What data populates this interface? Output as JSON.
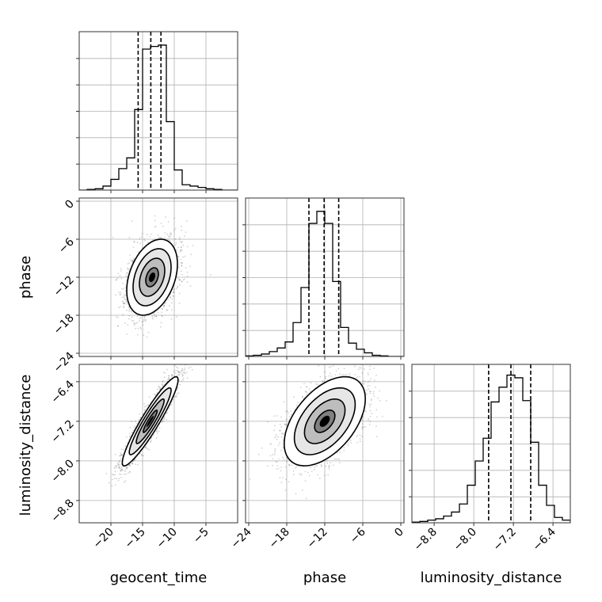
{
  "chart_data": {
    "type": "corner",
    "parameters": [
      "geocent_time",
      "phase",
      "luminosity_distance"
    ],
    "axis_labels": {
      "geocent_time": "geocent_time",
      "phase": "phase",
      "luminosity_distance": "luminosity_distance"
    },
    "ranges": {
      "geocent_time": [
        -25,
        0
      ],
      "phase": [
        -24.5,
        0.5
      ],
      "luminosity_distance": [
        -9.25,
        -6.05
      ]
    },
    "ticks": {
      "geocent_time": [
        {
          "v": -20,
          "t": "−20"
        },
        {
          "v": -15,
          "t": "−15"
        },
        {
          "v": -10,
          "t": "−10"
        },
        {
          "v": -5,
          "t": "−5"
        }
      ],
      "phase": [
        {
          "v": -24,
          "t": "−24"
        },
        {
          "v": -18,
          "t": "−18"
        },
        {
          "v": -12,
          "t": "−12"
        },
        {
          "v": -6,
          "t": "−6"
        },
        {
          "v": 0,
          "t": "0"
        }
      ],
      "luminosity_distance": [
        {
          "v": -8.8,
          "t": "−8.8"
        },
        {
          "v": -8.0,
          "t": "−8.0"
        },
        {
          "v": -7.2,
          "t": "−7.2"
        },
        {
          "v": -6.4,
          "t": "−6.4"
        }
      ]
    },
    "quantiles": {
      "geocent_time": [
        -15.7,
        -13.7,
        -12.1
      ],
      "phase": [
        -14.5,
        -12.1,
        -9.8
      ],
      "luminosity_distance": [
        -7.7,
        -7.25,
        -6.85
      ]
    },
    "histograms": {
      "geocent_time": {
        "edges": [
          -25,
          -23.75,
          -22.5,
          -21.25,
          -20,
          -18.75,
          -17.5,
          -16.25,
          -15,
          -13.75,
          -12.5,
          -11.25,
          -10,
          -8.75,
          -7.5,
          -6.25,
          -5,
          -3.75,
          -2.5,
          -1.25,
          0
        ],
        "counts": [
          0,
          0.5,
          1,
          3,
          8,
          16,
          24,
          60,
          105,
          107,
          108,
          51,
          15,
          4,
          3,
          2,
          1,
          0.5,
          0,
          0
        ],
        "ymax": 118
      },
      "phase": {
        "edges": [
          -24.5,
          -23.25,
          -22,
          -20.75,
          -19.5,
          -18.25,
          -17,
          -15.75,
          -14.5,
          -13.25,
          -12,
          -10.75,
          -9.5,
          -8.25,
          -7,
          -5.75,
          -4.5,
          -3.25,
          -2,
          -0.75,
          0.5
        ],
        "counts": [
          0.5,
          1,
          2,
          4,
          7,
          12,
          28,
          57,
          110,
          120,
          110,
          62,
          24,
          11,
          6,
          3,
          1,
          0.5,
          0,
          0
        ],
        "ymax": 131
      },
      "luminosity_distance": {
        "edges": [
          -9.25,
          -9.09,
          -8.93,
          -8.77,
          -8.61,
          -8.45,
          -8.29,
          -8.13,
          -7.97,
          -7.81,
          -7.65,
          -7.49,
          -7.33,
          -7.17,
          -7.01,
          -6.85,
          -6.69,
          -6.53,
          -6.37,
          -6.21,
          -6.05
        ],
        "counts": [
          0.5,
          1,
          2,
          3,
          5,
          8,
          14,
          28,
          46,
          63,
          90,
          101,
          110,
          108,
          91,
          60,
          28,
          13,
          4,
          2
        ],
        "ymax": 118
      }
    },
    "pairs": [
      {
        "x": "geocent_time",
        "y": "phase",
        "cx": -13.5,
        "cy": -12.0,
        "sx": 2.0,
        "sy": 3.0,
        "rho": 0.35,
        "n": 2000,
        "seed": 11
      },
      {
        "x": "geocent_time",
        "y": "luminosity_distance",
        "cx": -13.8,
        "cy": -7.2,
        "sx": 2.2,
        "sy": 0.45,
        "rho": 0.93,
        "n": 2000,
        "seed": 23
      },
      {
        "x": "phase",
        "y": "luminosity_distance",
        "cx": -12.0,
        "cy": -7.2,
        "sx": 3.2,
        "sy": 0.45,
        "rho": 0.5,
        "n": 2000,
        "seed": 37
      }
    ],
    "contour_levels_sigma": [
      0.5,
      1.0,
      1.5,
      2.0
    ],
    "colors": {
      "line": "#000000",
      "points": "#333333",
      "grid": "#b0b0b0",
      "axis": "#333333"
    },
    "grid": true
  }
}
